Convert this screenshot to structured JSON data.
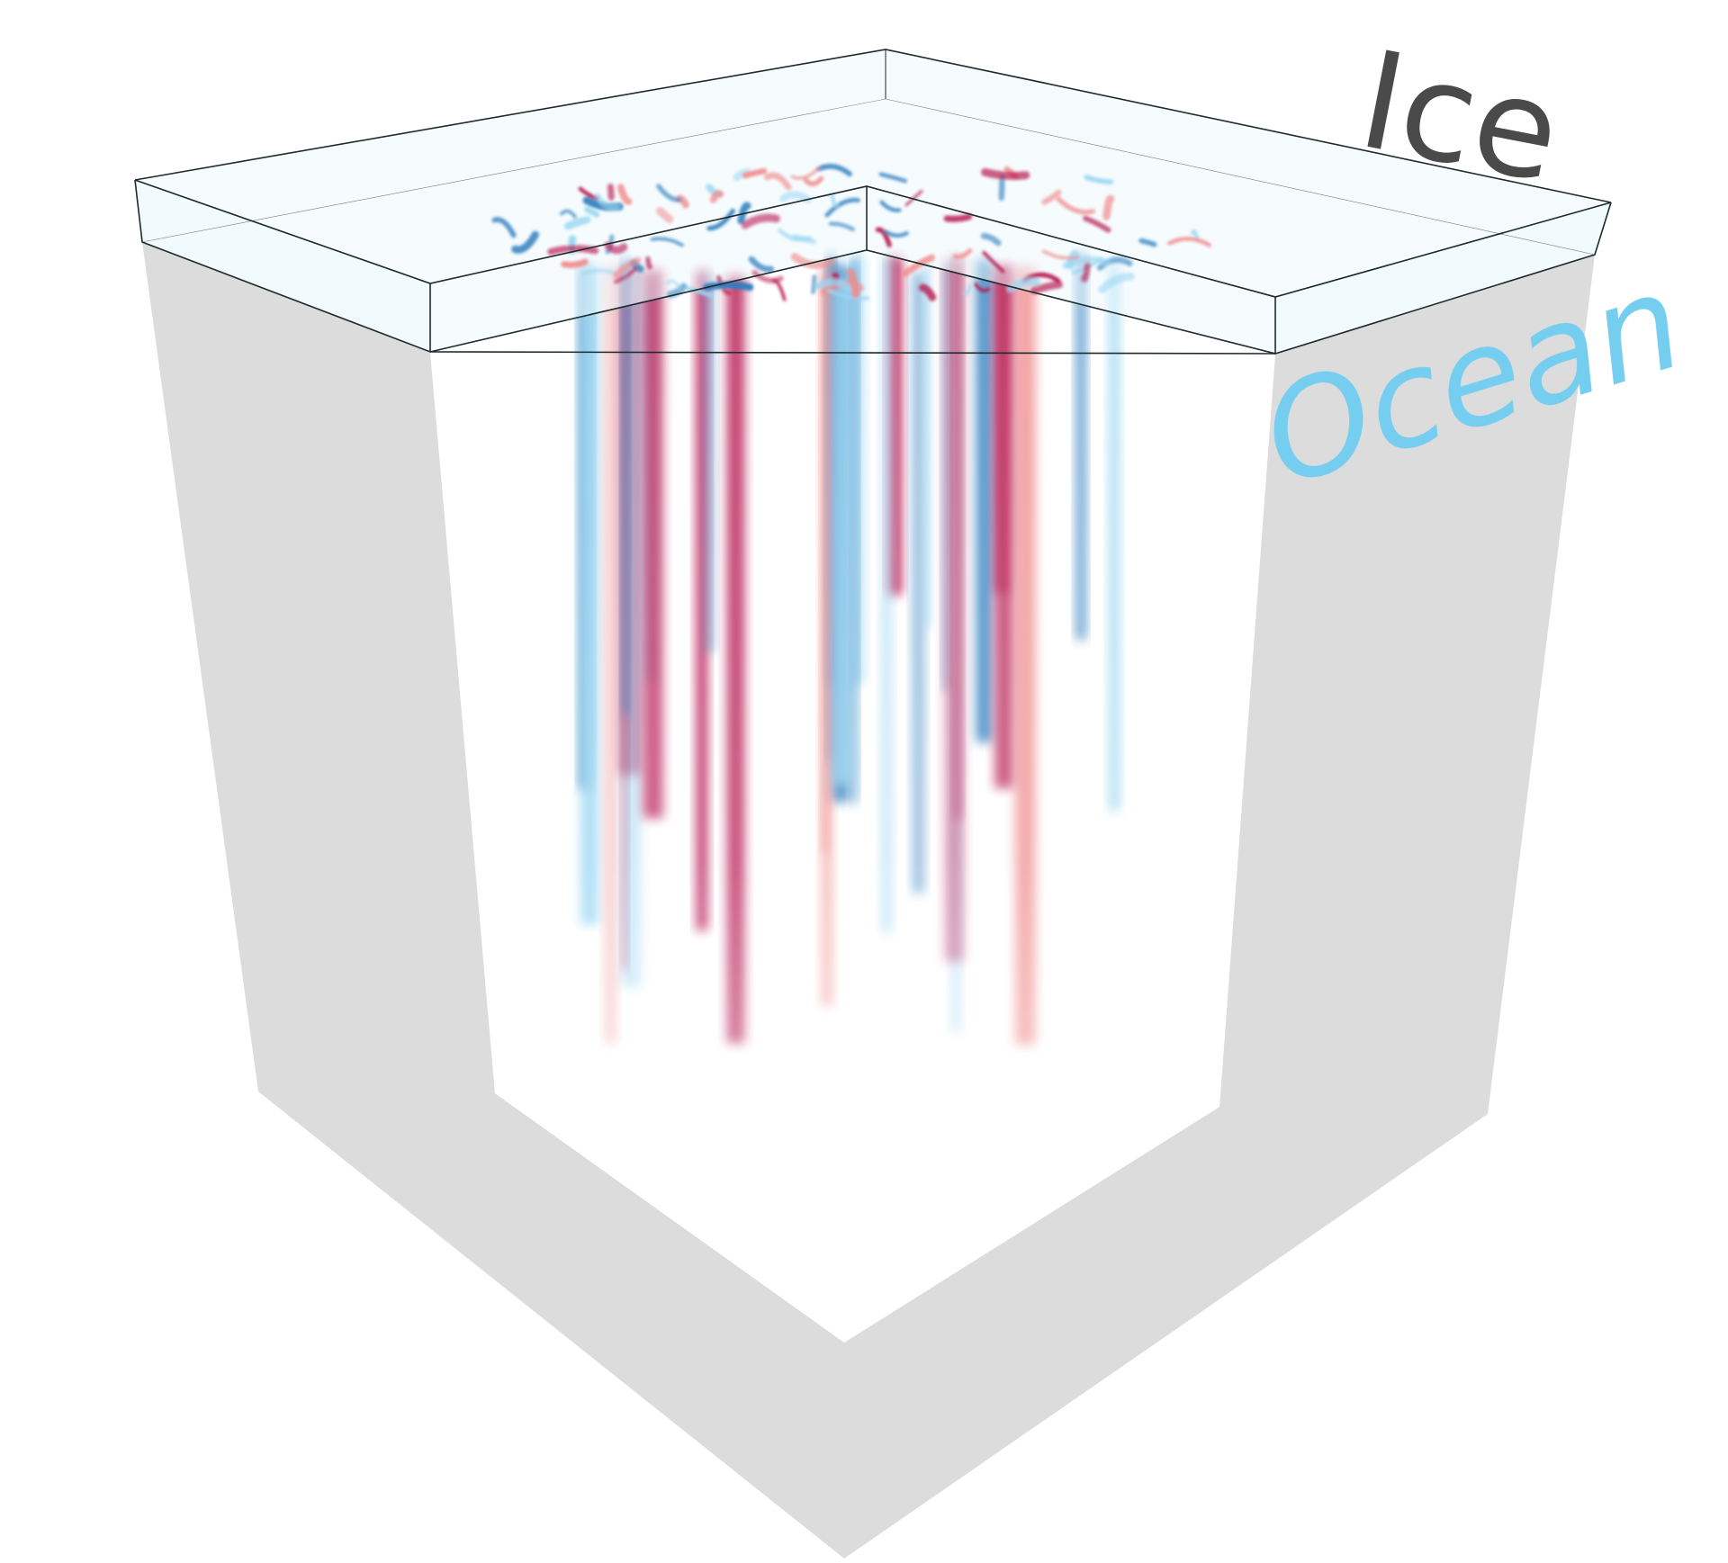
{
  "labels": {
    "ice": "Ice",
    "ocean": "Ocean"
  },
  "colors": {
    "ice_label": "#4a4a4a",
    "ocean_label": "#75cdf0",
    "box_side": "#dcdcdc",
    "box_edge": "#1e2b2b",
    "ice_layer": "#eef9fd",
    "anomaly_positive": "#b8174f",
    "anomaly_positive_light": "#f08c8c",
    "anomaly_negative": "#2a7cbd",
    "anomaly_negative_light": "#9ad6f2"
  }
}
